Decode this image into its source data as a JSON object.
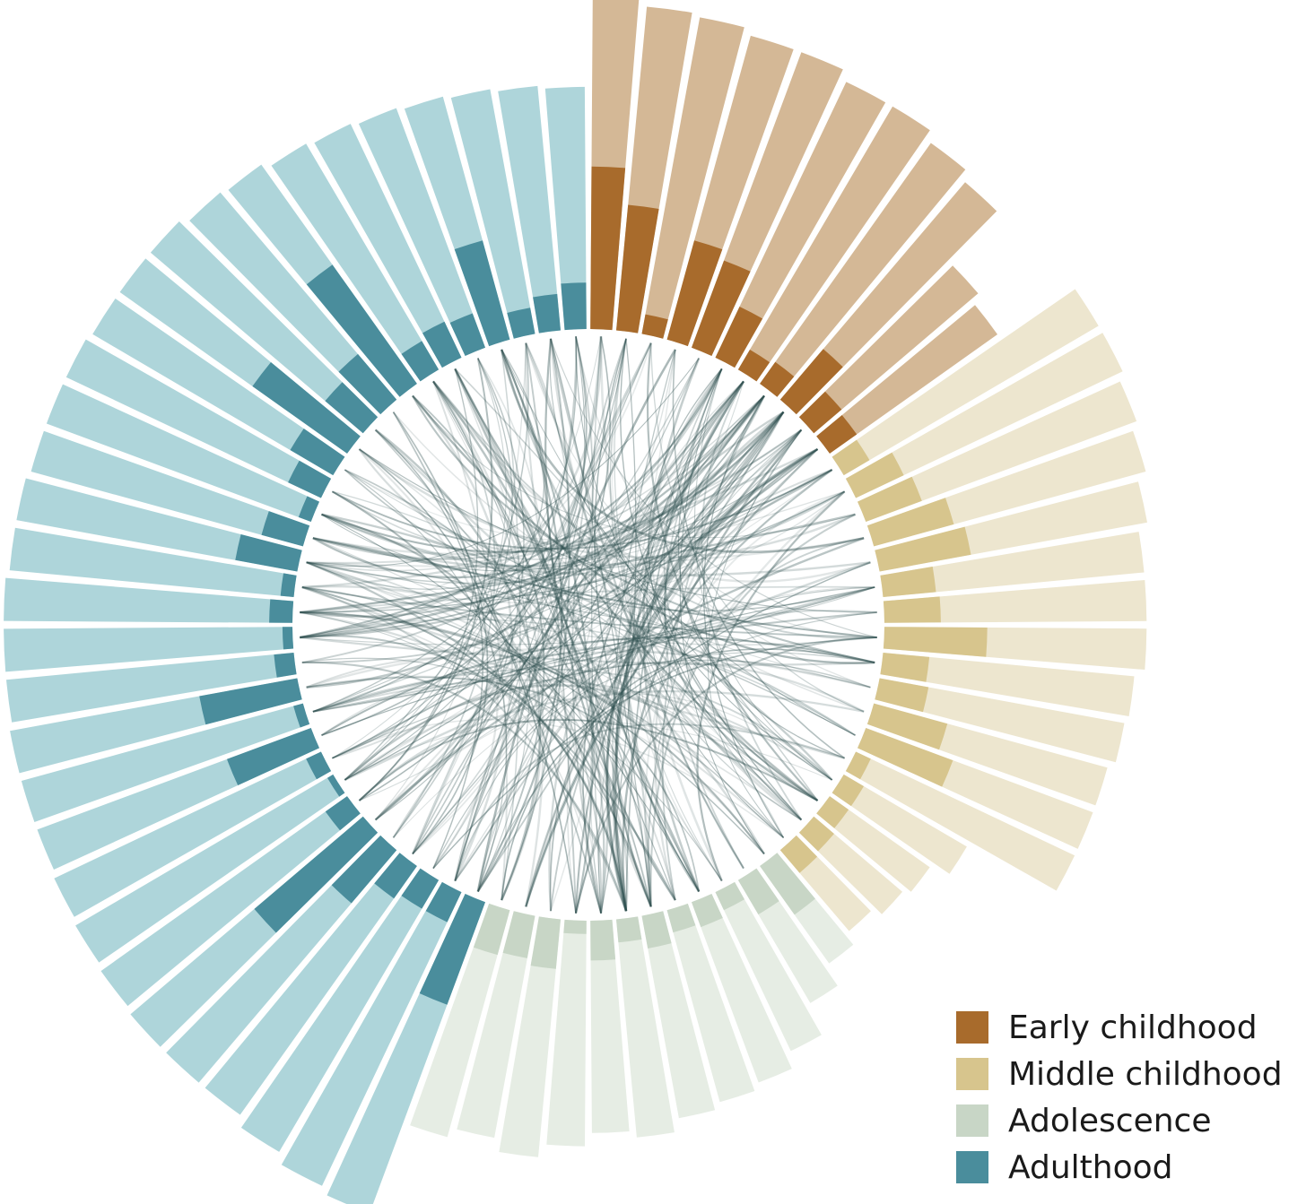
{
  "chart_data": {
    "type": "radial-bar-chord",
    "stage_order": [
      "Early childhood",
      "Middle childhood",
      "Adolescence",
      "Adulthood"
    ],
    "legend": [
      {
        "label": "Early childhood",
        "color": "#a86b2c"
      },
      {
        "label": "Middle childhood",
        "color": "#d7c58d"
      },
      {
        "label": "Adolescence",
        "color": "#c8d6c6"
      },
      {
        "label": "Adulthood",
        "color": "#4a8d9c"
      }
    ],
    "colors": {
      "Early childhood": {
        "light": "#d4b896",
        "dark": "#a86b2c"
      },
      "Middle childhood": {
        "light": "#ede6cf",
        "dark": "#d7c58d"
      },
      "Adolescence": {
        "light": "#e6ede4",
        "dark": "#c8d6c6"
      },
      "Adulthood": {
        "light": "#aed5da",
        "dark": "#4a8d9c"
      }
    },
    "chord_color": "#2f5050",
    "groups": [
      {
        "stage": "Early childhood",
        "totals": [
          1.0,
          0.98,
          0.97,
          0.95,
          0.95,
          0.92,
          0.92,
          0.89,
          0.86,
          0.65,
          0.62
        ],
        "inner": [
          0.49,
          0.38,
          0.06,
          0.31,
          0.28,
          0.17,
          0.07,
          0.08,
          0.2,
          0.11,
          0.1
        ]
      },
      {
        "stage": "Middle childhood",
        "totals": [
          0.89,
          0.89,
          0.87,
          0.85,
          0.82,
          0.79,
          0.79,
          0.79,
          0.76,
          0.75,
          0.73,
          0.73,
          0.73,
          0.43,
          0.37,
          0.35,
          0.32
        ],
        "inner": [
          0.09,
          0.16,
          0.18,
          0.25,
          0.28,
          0.16,
          0.17,
          0.31,
          0.14,
          0.15,
          0.23,
          0.28,
          0.05,
          0.07,
          0.07,
          0.08,
          0.09
        ]
      },
      {
        "stage": "Adolescence",
        "totals": [
          0.36,
          0.43,
          0.53,
          0.58,
          0.6,
          0.62,
          0.66,
          0.64,
          0.68,
          0.72,
          0.68,
          0.71
        ],
        "inner": [
          0.18,
          0.12,
          0.06,
          0.08,
          0.07,
          0.1,
          0.07,
          0.12,
          0.04,
          0.15,
          0.13,
          0.14
        ]
      },
      {
        "stage": "Adulthood",
        "totals": [
          1.0,
          0.98,
          0.95,
          0.92,
          0.92,
          0.92,
          0.91,
          0.9,
          0.89,
          0.88,
          0.88,
          0.88,
          0.87,
          0.87,
          0.87,
          0.86,
          0.86,
          0.85,
          0.85,
          0.85,
          0.84,
          0.84,
          0.84,
          0.82,
          0.81,
          0.79,
          0.78,
          0.77,
          0.76,
          0.75,
          0.74,
          0.73
        ],
        "inner": [
          0.33,
          0.1,
          0.1,
          0.12,
          0.21,
          0.43,
          0.08,
          0.02,
          0.05,
          0.27,
          0.03,
          0.3,
          0.06,
          0.03,
          0.07,
          0.04,
          0.19,
          0.13,
          0.04,
          0.11,
          0.15,
          0.35,
          0.15,
          0.18,
          0.44,
          0.1,
          0.12,
          0.11,
          0.31,
          0.08,
          0.11,
          0.14
        ]
      }
    ]
  }
}
